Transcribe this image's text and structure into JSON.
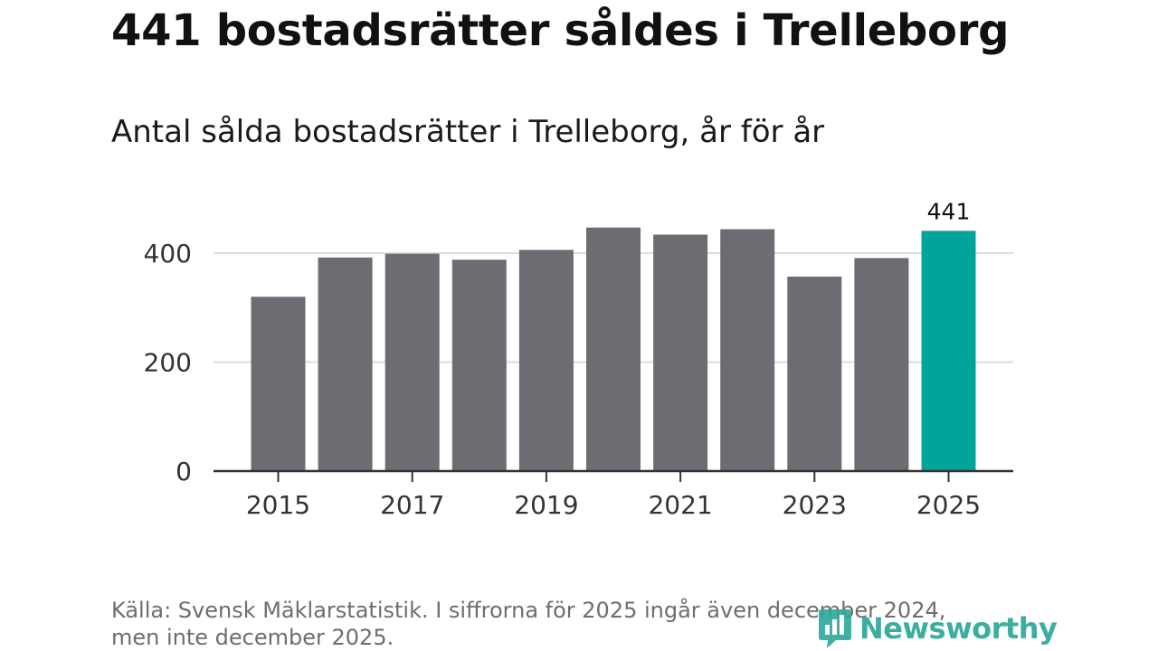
{
  "title": "441 bostadsrätter såldes i Trelleborg",
  "subtitle": "Antal sålda bostadsrätter i Trelleborg, år för år",
  "source_line1": "Källa: Svensk Mäklarstatistik. I siffrorna för 2025 ingår även december 2024,",
  "source_line2": "men inte december 2025.",
  "logo_text": "Newsworthy",
  "colors": {
    "bar": "#6d6c73",
    "highlight": "#00a49b",
    "grid": "#dddddd",
    "axis": "#333333",
    "text": "#333333",
    "logo": "#2ba79a"
  },
  "chart_data": {
    "type": "bar",
    "title": "Antal sålda bostadsrätter i Trelleborg, år för år",
    "xlabel": "",
    "ylabel": "",
    "categories": [
      "2015",
      "2016",
      "2017",
      "2018",
      "2019",
      "2020",
      "2021",
      "2022",
      "2023",
      "2024",
      "2025"
    ],
    "values": [
      320,
      392,
      399,
      388,
      406,
      447,
      434,
      444,
      357,
      391,
      441
    ],
    "highlight_index": 10,
    "data_labels": [
      {
        "index": 10,
        "text": "441"
      }
    ],
    "x_tick_labels": [
      "2015",
      "2017",
      "2019",
      "2021",
      "2023",
      "2025"
    ],
    "y_ticks": [
      0,
      200,
      400
    ],
    "ylim": [
      0,
      400
    ],
    "grid": true
  }
}
